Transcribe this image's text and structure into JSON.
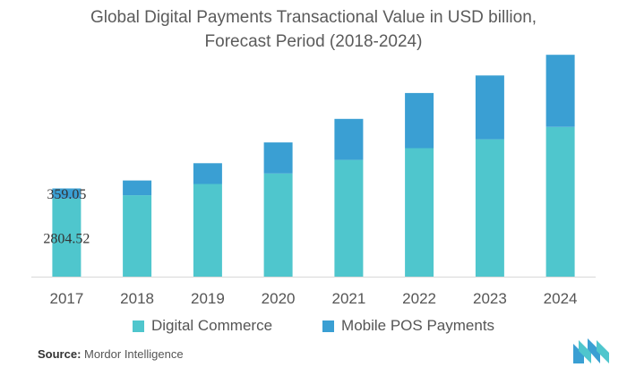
{
  "chart_data": {
    "type": "bar",
    "stacked": true,
    "title_lines": [
      "Global Digital Payments Transactional Value in USD billion,",
      "Forecast Period (2018-2024)"
    ],
    "categories": [
      "2017",
      "2018",
      "2019",
      "2020",
      "2021",
      "2022",
      "2023",
      "2024"
    ],
    "series": [
      {
        "name": "Digital Commerce",
        "color": "#4fc6cd",
        "values": [
          2804.52,
          2920,
          3325,
          3700,
          4190,
          4610,
          4930,
          5370
        ]
      },
      {
        "name": "Mobile POS Payments",
        "color": "#3a9fd3",
        "values": [
          359.05,
          530,
          745,
          1115,
          1470,
          1980,
          2290,
          2590
        ]
      }
    ],
    "data_labels": [
      {
        "category": "2017",
        "series": "Digital Commerce",
        "text": "2804.52"
      },
      {
        "category": "2017",
        "series": "Mobile POS Payments",
        "text": "359.05"
      }
    ],
    "ylim": [
      0,
      8000
    ],
    "grid": false,
    "legend_position": "bottom",
    "xlabel": "",
    "ylabel": ""
  },
  "source": {
    "label": "Source:",
    "text": "Mordor Intelligence"
  },
  "logo": {
    "icon": "mordor-intelligence-logo-icon"
  },
  "colors": {
    "axis": "#d9d9d9",
    "text": "#555555"
  }
}
